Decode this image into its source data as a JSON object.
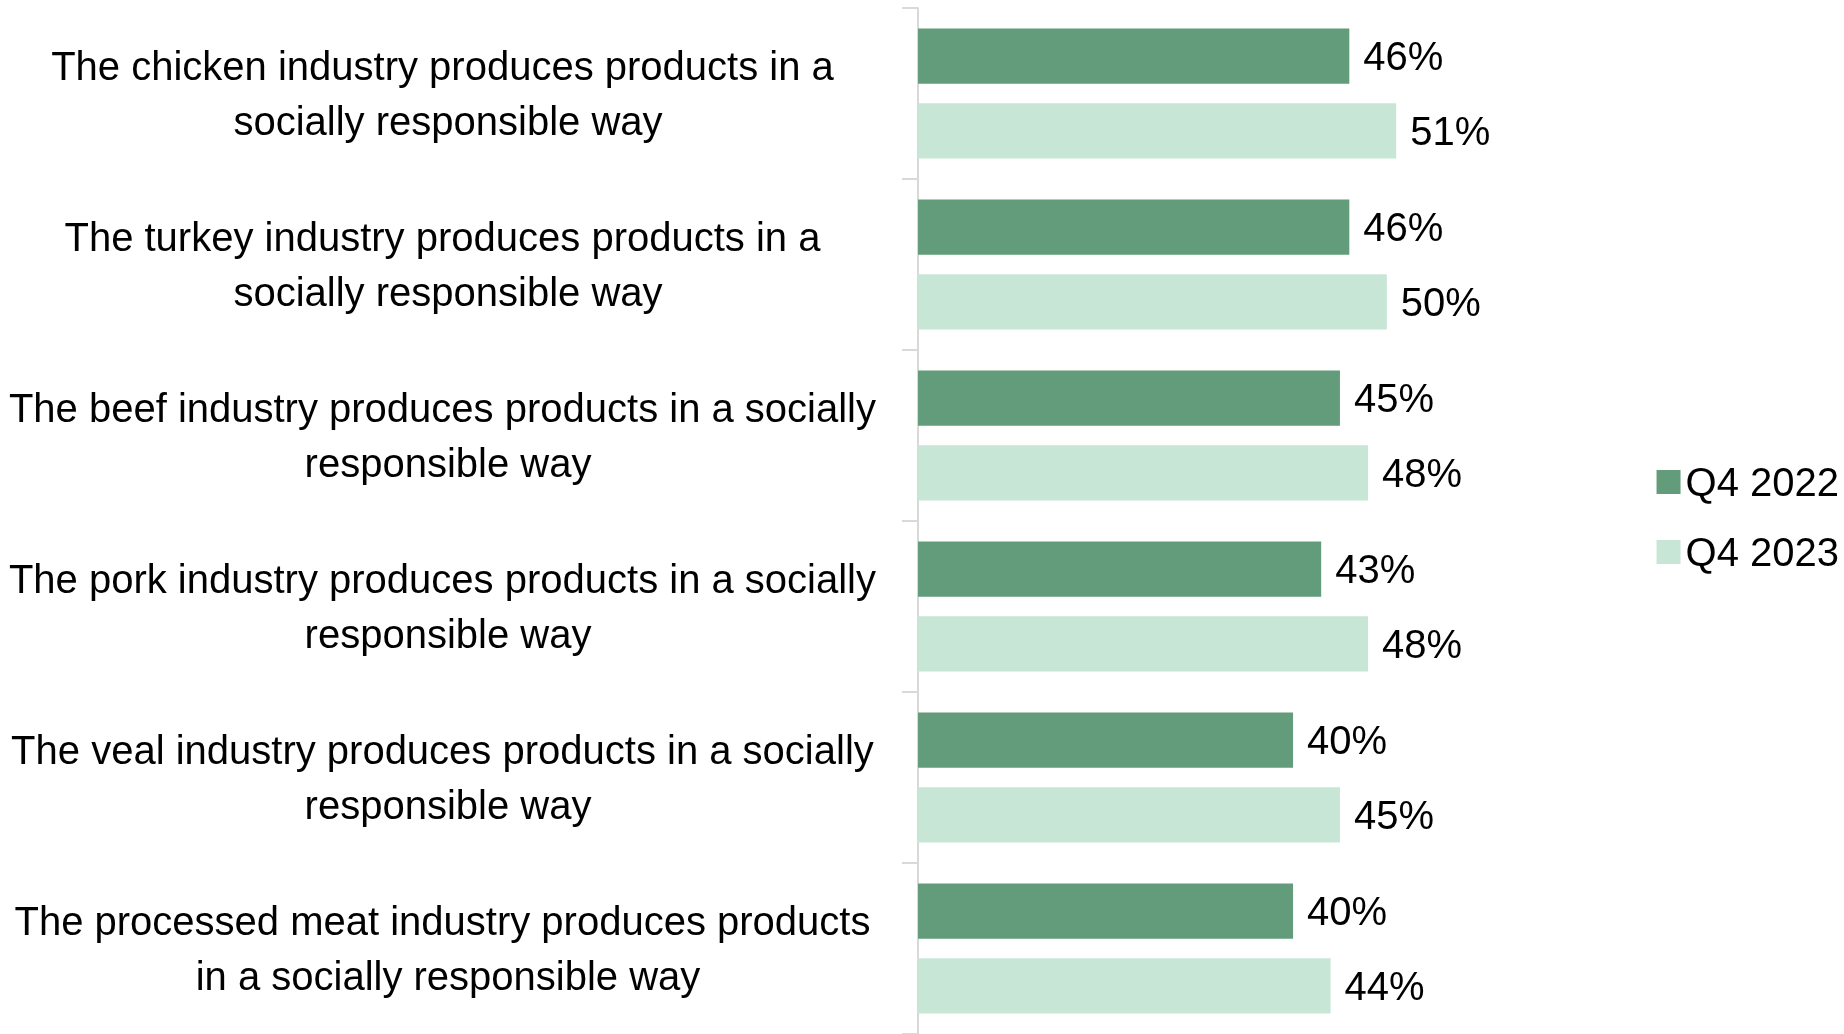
{
  "chart_data": {
    "type": "bar",
    "orientation": "horizontal",
    "legend": "right",
    "categories": [
      "The chicken industry produces products in a socially responsible way",
      "The turkey industry produces products in a socially responsible way",
      "The beef industry produces products in a socially responsible way",
      "The pork industry produces products in a socially responsible way",
      "The veal industry produces products in a socially responsible way",
      "The processed meat industry produces products in a socially responsible way"
    ],
    "series": [
      {
        "name": "Q4 2022",
        "color": "#629c7a",
        "values": [
          46,
          46,
          45,
          43,
          40,
          40
        ],
        "value_labels": [
          "46%",
          "46%",
          "45%",
          "43%",
          "40%",
          "40%"
        ]
      },
      {
        "name": "Q4 2023",
        "color": "#c8e6d6",
        "values": [
          51,
          50,
          48,
          48,
          45,
          44
        ],
        "value_labels": [
          "51%",
          "50%",
          "48%",
          "48%",
          "45%",
          "44%"
        ]
      }
    ]
  }
}
